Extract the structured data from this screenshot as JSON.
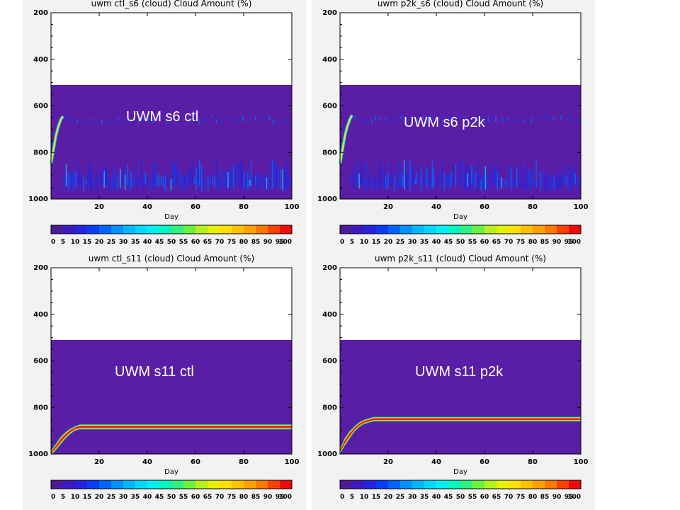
{
  "colorbar": {
    "colors": [
      "#4b1a96",
      "#3b18c0",
      "#2323e0",
      "#0a3cf5",
      "#0064ff",
      "#0091ff",
      "#00b7ff",
      "#00d8ff",
      "#00f0f0",
      "#00f5c0",
      "#30f080",
      "#6cf040",
      "#b4f020",
      "#e6f000",
      "#ffe000",
      "#ffc000",
      "#ffa000",
      "#ff7800",
      "#ff4000",
      "#f00a0a"
    ],
    "labels": [
      "0",
      "5",
      "10",
      "15",
      "20",
      "25",
      "30",
      "35",
      "40",
      "45",
      "50",
      "55",
      "60",
      "65",
      "70",
      "75",
      "80",
      "85",
      "90",
      "95",
      "100"
    ]
  },
  "background_color": "#5a1ea6",
  "chart_data": [
    {
      "type": "heatmap",
      "title": "uwm ctl_s6  (cloud)  Cloud Amount (%)",
      "xlabel": "Day",
      "ylabel": "",
      "xlim": [
        0,
        100
      ],
      "ylim": [
        1000,
        200
      ],
      "xticks": [
        20,
        40,
        60,
        80,
        100
      ],
      "yticks": [
        200,
        400,
        600,
        800,
        1000
      ],
      "data_top": 510,
      "overlay_label": "UWM s6 ctl",
      "cloud_pattern": "scattered",
      "spinup_track": {
        "day": [
          0,
          1,
          2,
          3,
          4,
          5
        ],
        "pressure": [
          850,
          790,
          730,
          690,
          660,
          645
        ]
      },
      "cloud_band": null
    },
    {
      "type": "heatmap",
      "title": "uwm p2k_s6  (cloud)  Cloud Amount (%)",
      "xlabel": "Day",
      "ylabel": "",
      "xlim": [
        0,
        100
      ],
      "ylim": [
        1000,
        200
      ],
      "xticks": [
        20,
        40,
        60,
        80,
        100
      ],
      "yticks": [
        200,
        400,
        600,
        800,
        1000
      ],
      "data_top": 510,
      "overlay_label": "UWM s6 p2k",
      "cloud_pattern": "scattered",
      "spinup_track": {
        "day": [
          0,
          1,
          2,
          3,
          4,
          5
        ],
        "pressure": [
          850,
          790,
          730,
          690,
          660,
          640
        ]
      },
      "cloud_band": null
    },
    {
      "type": "heatmap",
      "title": "uwm ctl_s11  (cloud)  Cloud Amount (%)",
      "xlabel": "Day",
      "ylabel": "",
      "xlim": [
        0,
        100
      ],
      "ylim": [
        1000,
        200
      ],
      "xticks": [
        20,
        40,
        60,
        80,
        100
      ],
      "yticks": [
        200,
        400,
        600,
        800,
        1000
      ],
      "data_top": 510,
      "overlay_label": "UWM s11 ctl",
      "cloud_pattern": "band",
      "spinup_track": null,
      "cloud_band": {
        "day": [
          0,
          2,
          4,
          6,
          8,
          10,
          12,
          100
        ],
        "top": [
          985,
          955,
          925,
          905,
          890,
          880,
          872,
          872
        ],
        "bottom": [
          1005,
          985,
          960,
          935,
          915,
          900,
          895,
          895
        ]
      }
    },
    {
      "type": "heatmap",
      "title": "uwm p2k_s11  (cloud)  Cloud Amount (%)",
      "xlabel": "Day",
      "ylabel": "",
      "xlim": [
        0,
        100
      ],
      "ylim": [
        1000,
        200
      ],
      "xticks": [
        20,
        40,
        60,
        80,
        100
      ],
      "yticks": [
        200,
        400,
        600,
        800,
        1000
      ],
      "data_top": 510,
      "overlay_label": "UWM s11 p2k",
      "cloud_pattern": "band",
      "spinup_track": null,
      "cloud_band": {
        "day": [
          0,
          2,
          4,
          6,
          8,
          10,
          14,
          100
        ],
        "top": [
          975,
          930,
          900,
          880,
          862,
          852,
          840,
          840
        ],
        "bottom": [
          1000,
          965,
          935,
          905,
          885,
          872,
          860,
          860
        ]
      }
    }
  ]
}
